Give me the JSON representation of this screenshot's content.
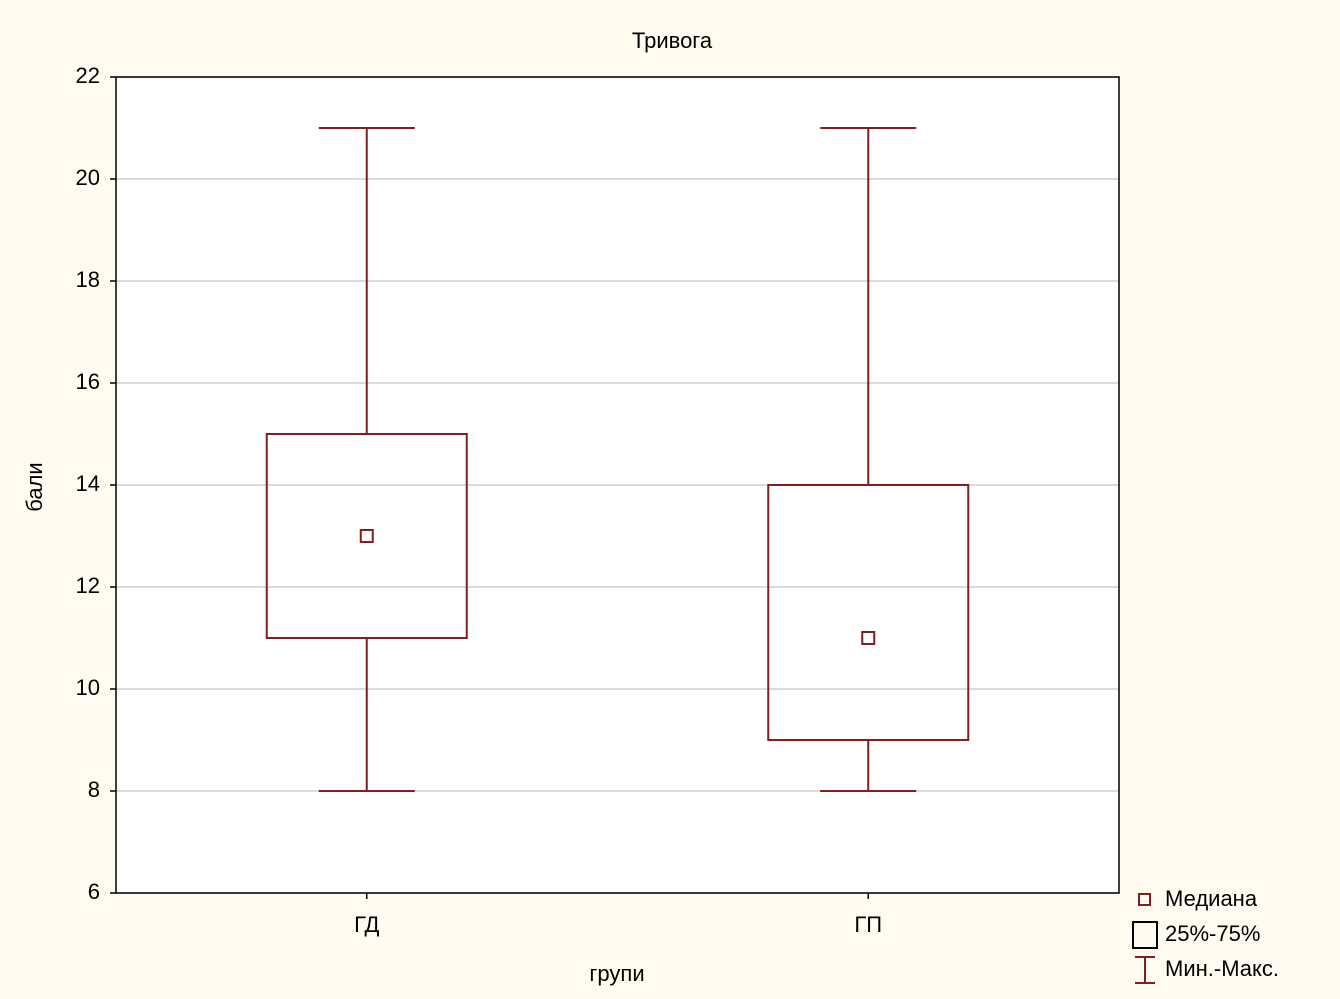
{
  "chart_data": {
    "type": "box",
    "title": "Тривога",
    "x_label": "групи",
    "y_label": "бали",
    "categories": [
      "ГД",
      "ГП"
    ],
    "min": [
      8,
      8
    ],
    "q1": [
      11,
      9
    ],
    "median": [
      13,
      11
    ],
    "q3": [
      15,
      14
    ],
    "max": [
      21,
      21
    ],
    "color": "#7f1f1f",
    "ylim": [
      6,
      22
    ],
    "yticks": [
      6,
      8,
      10,
      12,
      14,
      16,
      18,
      20,
      22
    ],
    "grid": true,
    "legend": {
      "median": "Медиана",
      "box": "25%-75%",
      "whisker": "Мин.-Макс."
    }
  }
}
